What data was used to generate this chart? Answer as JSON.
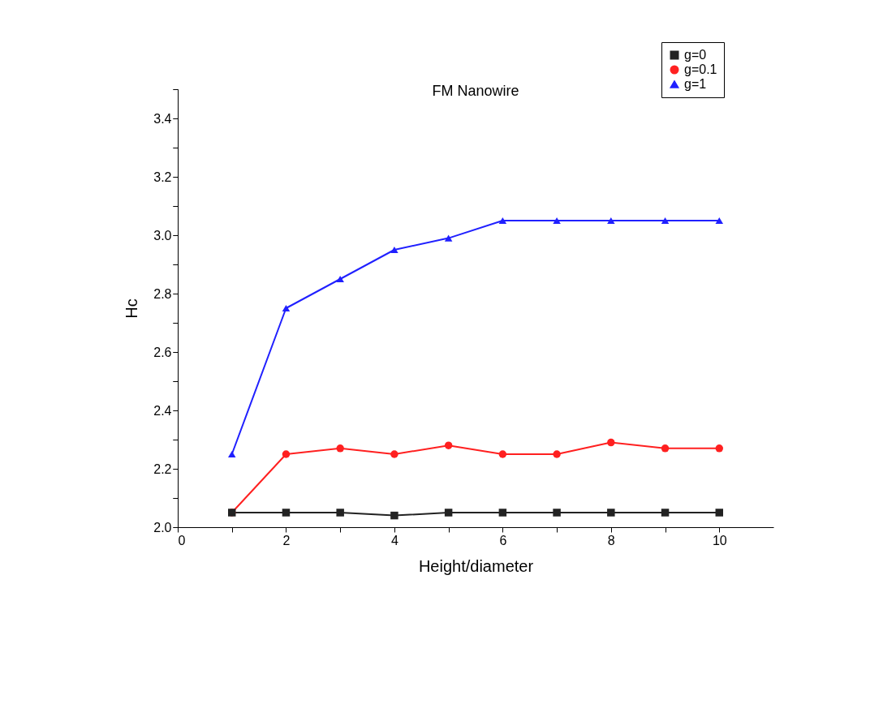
{
  "chart_data": {
    "type": "line",
    "title": "FM Nanowire",
    "xlabel": "Height/diameter",
    "ylabel": "Hc",
    "x": [
      1,
      2,
      3,
      4,
      5,
      6,
      7,
      8,
      9,
      10
    ],
    "series": [
      {
        "name": "g=0",
        "color": "#222222",
        "marker": "square",
        "values": [
          2.05,
          2.05,
          2.05,
          2.04,
          2.05,
          2.05,
          2.05,
          2.05,
          2.05,
          2.05
        ]
      },
      {
        "name": "g=0.1",
        "color": "#ff2020",
        "marker": "circle",
        "values": [
          2.05,
          2.25,
          2.27,
          2.25,
          2.28,
          2.25,
          2.25,
          2.29,
          2.27,
          2.27
        ]
      },
      {
        "name": "g=1",
        "color": "#2020ff",
        "marker": "triangle",
        "values": [
          2.25,
          2.75,
          2.85,
          2.95,
          2.99,
          3.05,
          3.05,
          3.05,
          3.05,
          3.05
        ]
      }
    ],
    "xlim": [
      0,
      11
    ],
    "xticks": [
      0,
      {
        "value": 1,
        "label": null
      },
      2,
      {
        "value": 3,
        "label": null
      },
      4,
      {
        "value": 5,
        "label": null
      },
      6,
      {
        "value": 7,
        "label": null
      },
      8,
      {
        "value": 9,
        "label": null
      },
      10
    ],
    "ylim": [
      2.0,
      3.5
    ],
    "yticks": [
      {
        "value": 2,
        "label": "2.0"
      },
      {
        "value": 2.1,
        "label": null
      },
      2.2,
      {
        "value": 2.3,
        "label": null
      },
      2.4,
      {
        "value": 2.5,
        "label": null
      },
      2.6,
      {
        "value": 2.7,
        "label": null
      },
      2.8,
      {
        "value": 2.9,
        "label": null
      },
      {
        "value": 3,
        "label": "3.0"
      },
      {
        "value": 3.1,
        "label": null
      },
      3.2,
      {
        "value": 3.3,
        "label": null
      },
      3.4,
      {
        "value": 3.5,
        "label": null
      }
    ],
    "grid": false,
    "legend": "top right",
    "line_style": "solid"
  }
}
